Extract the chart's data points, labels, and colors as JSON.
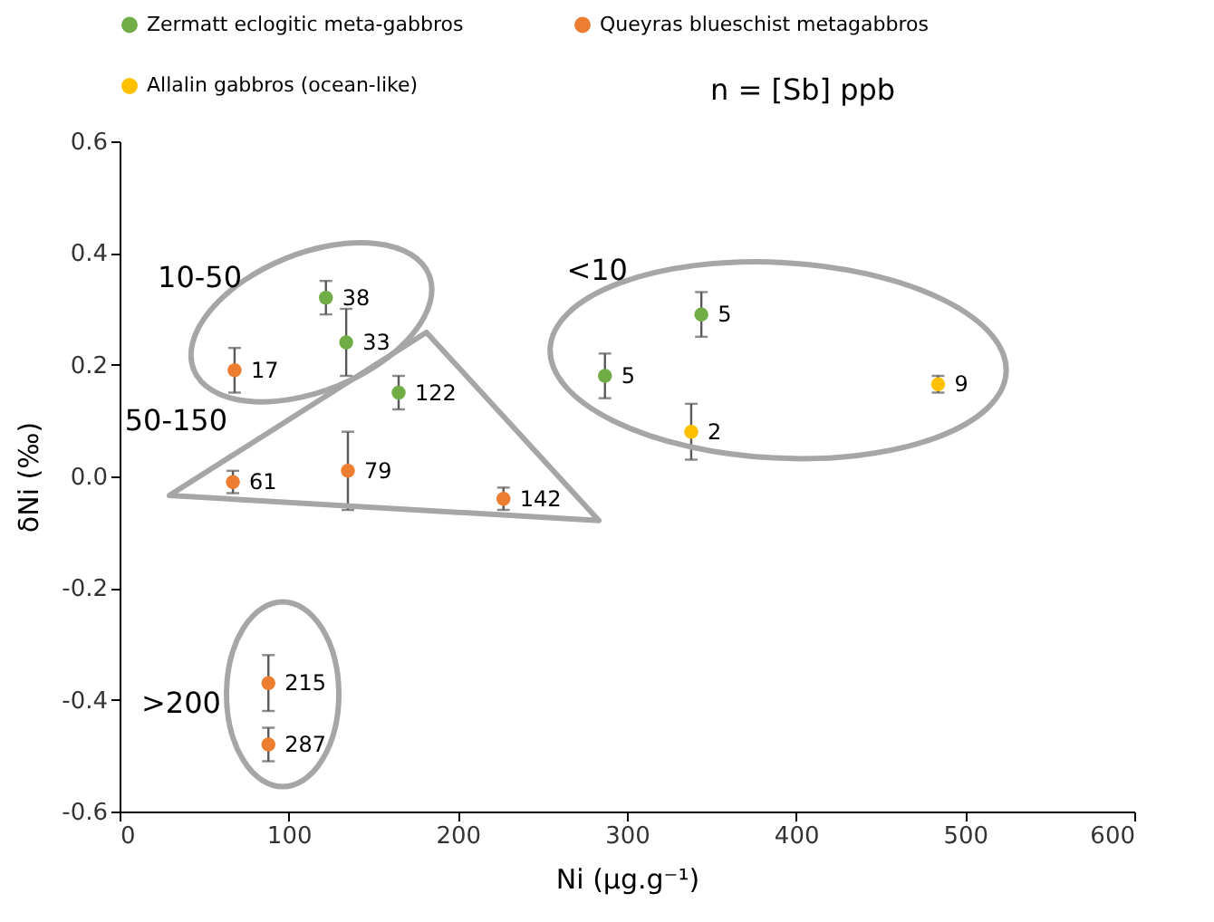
{
  "chart_data": {
    "type": "scatter",
    "xlabel": "Ni (µg.g⁻¹)",
    "ylabel": "δNi (‰)",
    "xlim": [
      0,
      600
    ],
    "xticks": [
      0,
      100,
      200,
      300,
      400,
      500,
      600
    ],
    "ylim": [
      -0.6,
      0.6
    ],
    "yticks": [
      -0.6,
      -0.4,
      -0.2,
      {
        "value": 0,
        "label": "0.0"
      },
      0.2,
      0.4,
      0.6
    ],
    "grid": false,
    "legend": "top",
    "marker": "circle",
    "series": [
      {
        "name": "Zermatt eclogitic meta-gabbros",
        "color": "#70ad47",
        "x": [
          122,
          134,
          165,
          344,
          287
        ],
        "values": [
          0.32,
          0.24,
          0.15,
          0.29,
          0.18
        ],
        "errors": [
          0.03,
          0.06,
          0.03,
          0.04,
          0.04
        ]
      },
      {
        "name": "Queyras blueschist metagabbros",
        "color": "#ed7d31",
        "x": [
          68,
          67,
          135,
          227,
          88,
          88
        ],
        "values": [
          0.19,
          -0.01,
          0.01,
          -0.04,
          -0.37,
          -0.48
        ],
        "errors": [
          0.04,
          0.02,
          0.07,
          0.02,
          0.05,
          0.03
        ]
      },
      {
        "name": "Allalin gabbros (ocean-like)",
        "color": "#ffc000",
        "x": [
          338,
          484
        ],
        "values": [
          0.08,
          0.165
        ],
        "errors": [
          0.05,
          0.015
        ]
      }
    ],
    "annotations": [
      "n = [Sb] ppb",
      {
        "text": "38",
        "x": 122,
        "y": 0.32
      },
      {
        "text": "33",
        "x": 134,
        "y": 0.24
      },
      {
        "text": "17",
        "x": 68,
        "y": 0.19
      },
      {
        "text": "122",
        "x": 165,
        "y": 0.15
      },
      {
        "text": "61",
        "x": 67,
        "y": -0.01
      },
      {
        "text": "79",
        "x": 135,
        "y": 0.01
      },
      {
        "text": "142",
        "x": 227,
        "y": -0.04
      },
      {
        "text": "5",
        "x": 344,
        "y": 0.29
      },
      {
        "text": "5",
        "x": 287,
        "y": 0.18
      },
      {
        "text": "2",
        "x": 338,
        "y": 0.08
      },
      {
        "text": "9",
        "x": 484,
        "y": 0.165
      },
      {
        "text": "215",
        "x": 88,
        "y": -0.37
      },
      {
        "text": "287",
        "x": 88,
        "y": -0.48
      },
      "10-50",
      "50-150",
      "<10",
      ">200"
    ]
  }
}
